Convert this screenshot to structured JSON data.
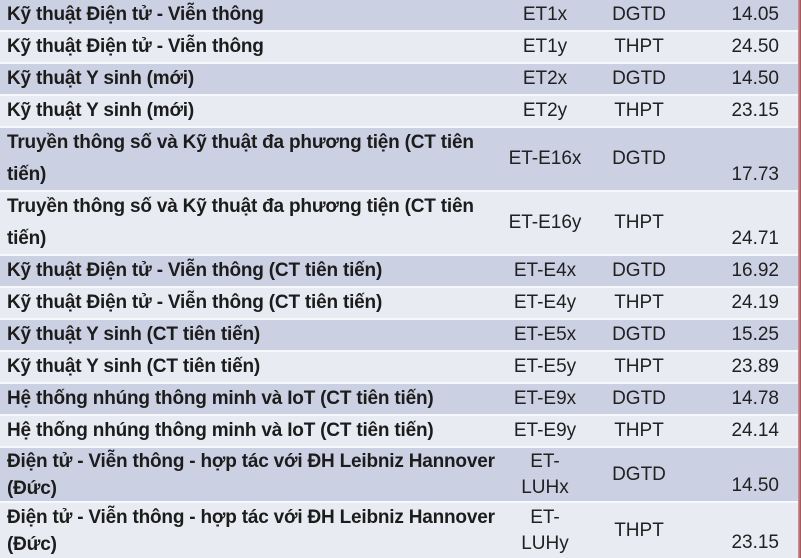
{
  "table": {
    "columns": [
      "program_name",
      "program_code",
      "exam_type",
      "score"
    ],
    "exam_types": [
      "DGTD",
      "THPT"
    ],
    "rows": [
      {
        "name": "Kỹ thuật Điện tử - Viễn thông",
        "code": "ET1x",
        "exam": "DGTD",
        "score": "14.05"
      },
      {
        "name": "Kỹ thuật Điện tử - Viễn thông",
        "code": "ET1y",
        "exam": "THPT",
        "score": "24.50"
      },
      {
        "name": "Kỹ thuật Y sinh (mới)",
        "code": "ET2x",
        "exam": "DGTD",
        "score": "14.50"
      },
      {
        "name": "Kỹ thuật Y sinh (mới)",
        "code": "ET2y",
        "exam": "THPT",
        "score": "23.15"
      },
      {
        "name": "Truyền thông số và Kỹ thuật đa phương tiện (CT tiên tiến)",
        "code": "ET-E16x",
        "exam": "DGTD",
        "score": "17.73"
      },
      {
        "name": "Truyền thông số và Kỹ thuật đa phương tiện (CT tiên tiến)",
        "code": "ET-E16y",
        "exam": "THPT",
        "score": "24.71"
      },
      {
        "name": "Kỹ thuật Điện tử - Viễn thông (CT tiên tiến)",
        "code": "ET-E4x",
        "exam": "DGTD",
        "score": "16.92"
      },
      {
        "name": "Kỹ thuật Điện tử - Viễn thông (CT tiên tiến)",
        "code": "ET-E4y",
        "exam": "THPT",
        "score": "24.19"
      },
      {
        "name": "Kỹ thuật Y sinh (CT tiên tiến)",
        "code": "ET-E5x",
        "exam": "DGTD",
        "score": "15.25"
      },
      {
        "name": "Kỹ thuật Y sinh (CT tiên tiến)",
        "code": "ET-E5y",
        "exam": "THPT",
        "score": "23.89"
      },
      {
        "name": "Hệ thống nhúng thông minh và IoT (CT tiên tiến)",
        "code": "ET-E9x",
        "exam": "DGTD",
        "score": "14.78"
      },
      {
        "name": "Hệ thống nhúng thông minh và IoT (CT tiên tiến)",
        "code": "ET-E9y",
        "exam": "THPT",
        "score": "24.14"
      },
      {
        "name": "Điện tử - Viễn thông - hợp tác với ĐH Leibniz Hannover (Đức)",
        "code": "ET-\nLUHx",
        "exam": "DGTD",
        "score": "14.50"
      },
      {
        "name": "Điện tử - Viễn thông - hợp tác với ĐH Leibniz Hannover (Đức)",
        "code": "ET-\nLUHy",
        "exam": "THPT",
        "score": "23.15"
      }
    ]
  },
  "colors": {
    "row_dark": "#cbd1e3",
    "row_light": "#e9ebf3",
    "separator": "#f7f8fb",
    "text": "#212121",
    "right_edge_accent": "#9e4a4e"
  }
}
